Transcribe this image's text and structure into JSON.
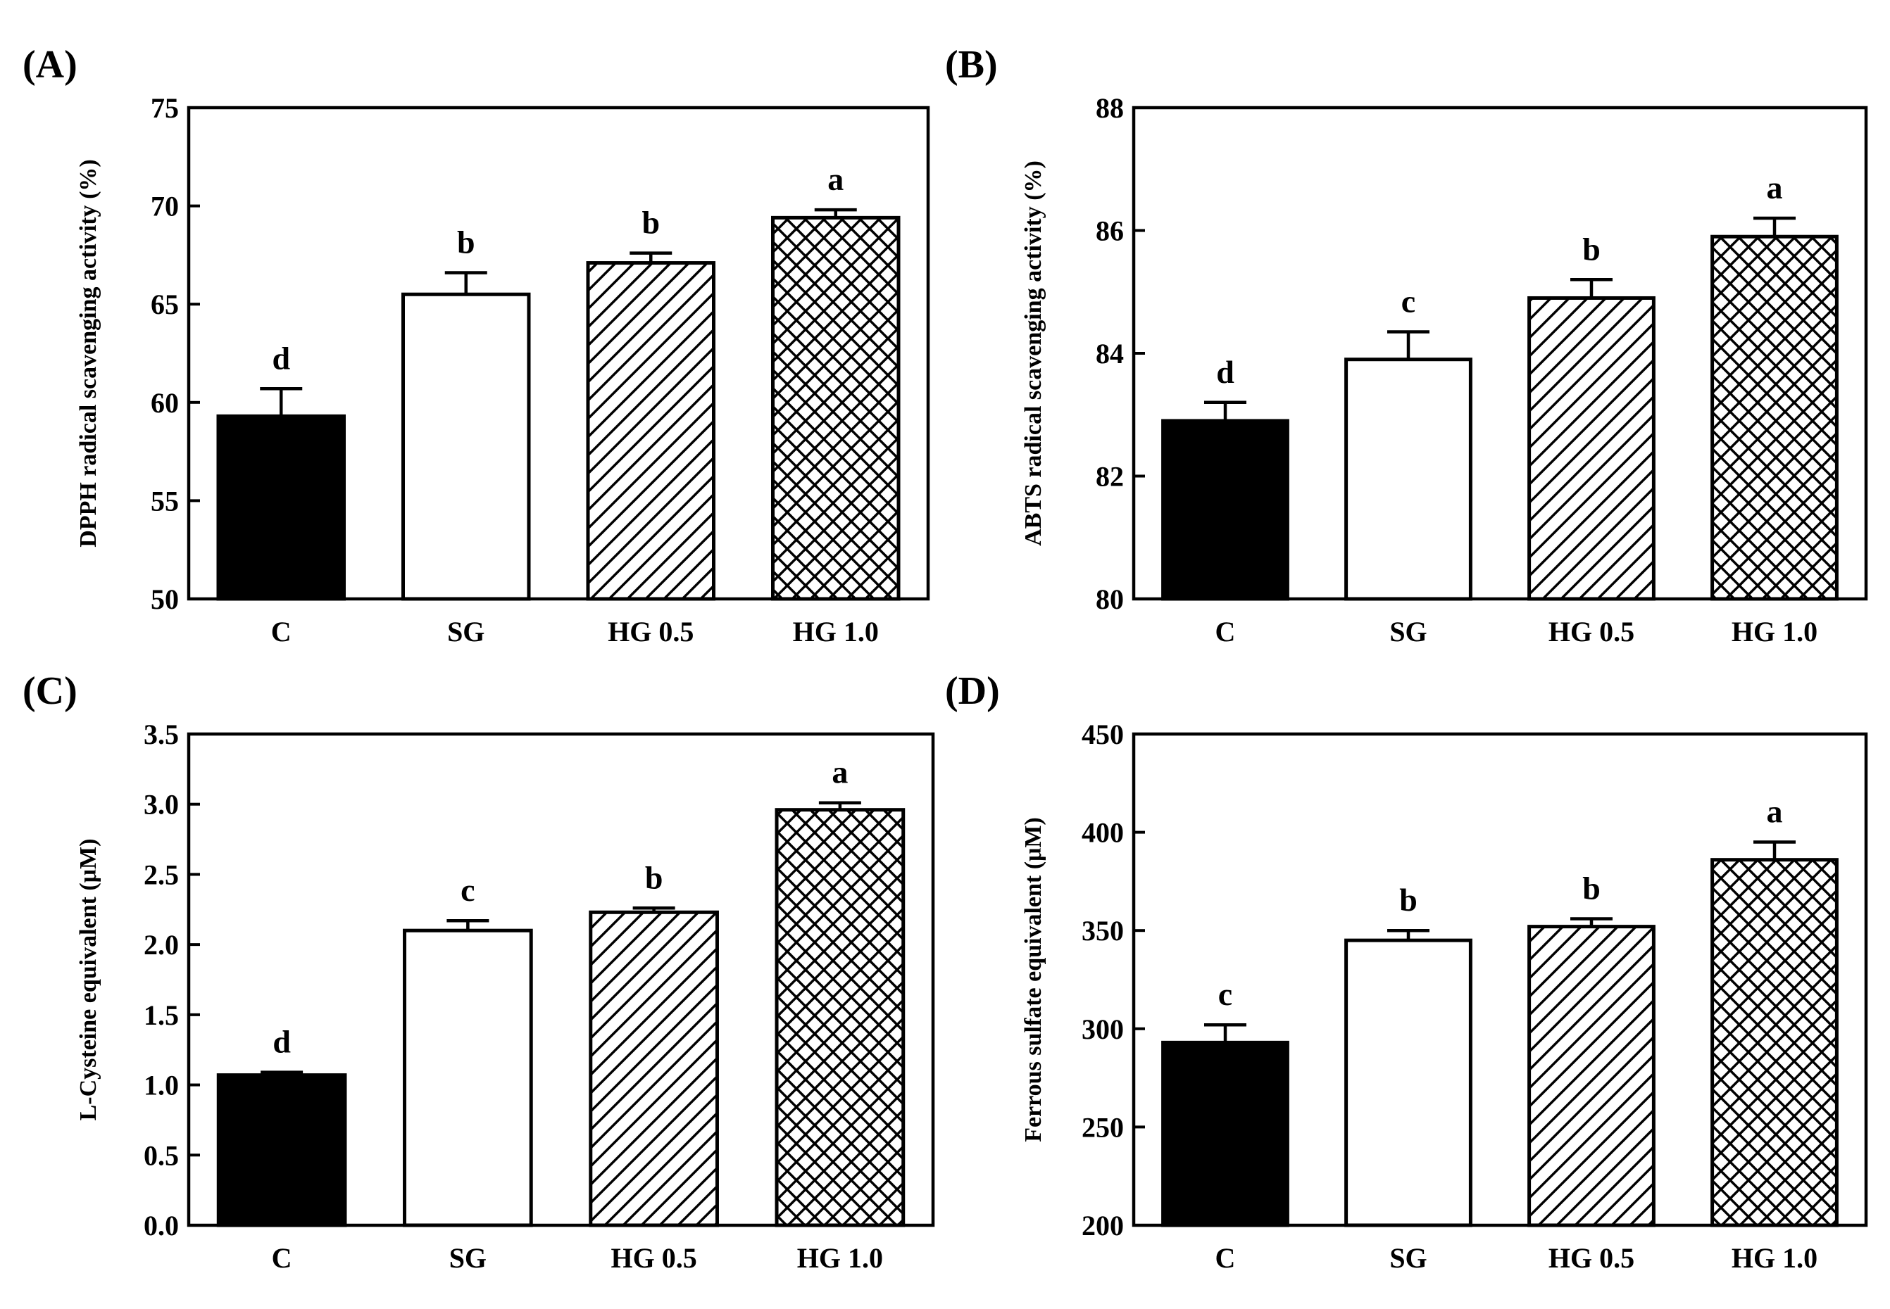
{
  "figure": {
    "bar_styles": {
      "C": "solid",
      "SG": "open",
      "HG 0.5": "hatch",
      "HG 1.0": "crosshatch"
    },
    "colors": {
      "bar_fill": "#000000",
      "background": "#ffffff"
    }
  },
  "chart_data": [
    {
      "panel_label": "(A)",
      "type": "bar",
      "categories": [
        "C",
        "SG",
        "HG 0.5",
        "HG 1.0"
      ],
      "values": [
        59.3,
        65.5,
        67.1,
        69.4
      ],
      "errors": [
        1.4,
        1.1,
        0.5,
        0.4
      ],
      "significance": [
        "d",
        "b",
        "b",
        "a"
      ],
      "ylabel": "DPPH radical scavenging activity (%)",
      "xlabel": "",
      "ylim": [
        50,
        75
      ],
      "yticks": [
        50,
        55,
        60,
        65,
        70,
        75
      ],
      "ytick_labels": [
        "50",
        "55",
        "60",
        "65",
        "70",
        "75"
      ]
    },
    {
      "panel_label": "(B)",
      "type": "bar",
      "categories": [
        "C",
        "SG",
        "HG 0.5",
        "HG 1.0"
      ],
      "values": [
        82.9,
        83.9,
        84.9,
        85.9
      ],
      "errors": [
        0.3,
        0.45,
        0.3,
        0.3
      ],
      "significance": [
        "d",
        "c",
        "b",
        "a"
      ],
      "ylabel": "ABTS radical scavenging activity (%)",
      "xlabel": "",
      "ylim": [
        80,
        88
      ],
      "yticks": [
        80,
        82,
        84,
        86,
        88
      ],
      "ytick_labels": [
        "80",
        "82",
        "84",
        "86",
        "88"
      ]
    },
    {
      "panel_label": "(C)",
      "type": "bar",
      "categories": [
        "C",
        "SG",
        "HG 0.5",
        "HG 1.0"
      ],
      "values": [
        1.07,
        2.1,
        2.23,
        2.96
      ],
      "errors": [
        0.02,
        0.07,
        0.03,
        0.05
      ],
      "significance": [
        "d",
        "c",
        "b",
        "a"
      ],
      "ylabel": "L-Cysteine equivalent (μM)",
      "xlabel": "",
      "ylim": [
        0,
        3.5
      ],
      "yticks": [
        0,
        0.5,
        1,
        1.5,
        2,
        2.5,
        3,
        3.5
      ],
      "ytick_labels": [
        "0.0",
        "0.5",
        "1.0",
        "1.5",
        "2.0",
        "2.5",
        "3.0",
        "3.5"
      ]
    },
    {
      "panel_label": "(D)",
      "type": "bar",
      "categories": [
        "C",
        "SG",
        "HG 0.5",
        "HG 1.0"
      ],
      "values": [
        293,
        345,
        352,
        386
      ],
      "errors": [
        9,
        5,
        4,
        9
      ],
      "significance": [
        "c",
        "b",
        "b",
        "a"
      ],
      "ylabel": "Ferrous sulfate equivalent (μM)",
      "xlabel": "",
      "ylim": [
        200,
        450
      ],
      "yticks": [
        200,
        250,
        300,
        350,
        400,
        450
      ],
      "ytick_labels": [
        "200",
        "250",
        "300",
        "350",
        "400",
        "450"
      ]
    }
  ]
}
